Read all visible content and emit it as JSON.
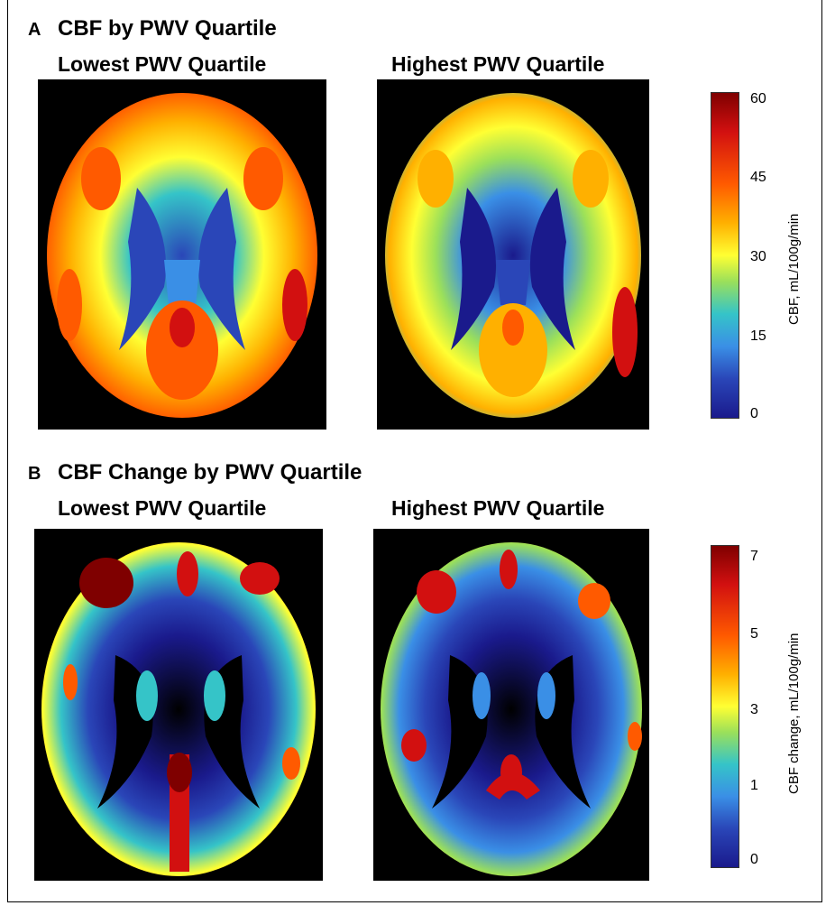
{
  "panel_a": {
    "letter": "A",
    "title": "CBF by PWV Quartile",
    "left_label": "Lowest PWV Quartile",
    "right_label": "Highest PWV Quartile",
    "colorbar": {
      "title": "CBF, mL/100g/min",
      "ticks": [
        "60",
        "45",
        "30",
        "15",
        "0"
      ]
    }
  },
  "panel_b": {
    "letter": "B",
    "title": "CBF Change by PWV Quartile",
    "left_label": "Lowest PWV Quartile",
    "right_label": "Highest PWV Quartile",
    "colorbar": {
      "title": "CBF change, mL/100g/min",
      "ticks": [
        "7",
        "5",
        "3",
        "1",
        "0"
      ]
    }
  },
  "colormap": [
    "#7f0000",
    "#d21010",
    "#ff5a00",
    "#ffb000",
    "#ffff33",
    "#9be05a",
    "#35c4c8",
    "#3a8fe6",
    "#2a46b8",
    "#1a1a8c"
  ]
}
